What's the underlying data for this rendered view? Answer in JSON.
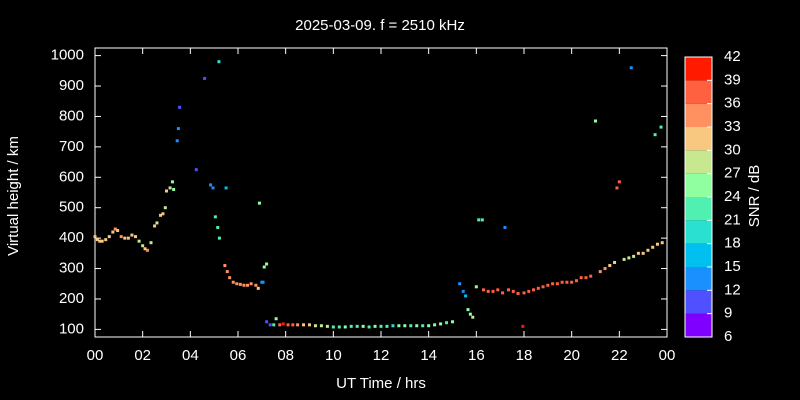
{
  "chart_data": {
    "type": "scatter",
    "title": "2025-03-09. f = 2510 kHz",
    "xlabel": "UT Time / hrs",
    "ylabel": "Virtual height / km",
    "xlim": [
      0,
      24
    ],
    "ylim": [
      75,
      1025
    ],
    "xticks": [
      {
        "value": 0,
        "label": "00"
      },
      {
        "value": 2,
        "label": "02"
      },
      {
        "value": 4,
        "label": "04"
      },
      {
        "value": 6,
        "label": "06"
      },
      {
        "value": 8,
        "label": "08"
      },
      10,
      12,
      14,
      16,
      18,
      20,
      22,
      {
        "value": 24,
        "label": "00"
      }
    ],
    "yticks": [
      100,
      200,
      300,
      400,
      500,
      600,
      700,
      800,
      900,
      1000
    ],
    "colorbar_label": "SNR / dB",
    "clim": [
      6,
      42
    ],
    "cticks": [
      6,
      9,
      12,
      15,
      18,
      21,
      24,
      27,
      30,
      33,
      36,
      39,
      42
    ],
    "colors": [
      "#8000ff",
      "#5050ff",
      "#1a90ff",
      "#00c0f0",
      "#2ae0d0",
      "#50f0b0",
      "#90ffa0",
      "#c8e890",
      "#f8c880",
      "#ff9060",
      "#ff6040",
      "#ff1a00"
    ],
    "x": [
      0.0,
      0.1,
      0.2,
      0.3,
      0.45,
      0.6,
      0.75,
      0.85,
      0.95,
      1.1,
      1.25,
      1.4,
      1.55,
      1.7,
      1.85,
      2.0,
      2.1,
      2.2,
      2.35,
      2.5,
      2.6,
      2.75,
      2.85,
      2.95,
      3.0,
      3.15,
      3.25,
      3.3,
      3.45,
      3.5,
      3.55,
      4.25,
      4.6,
      5.2,
      4.85,
      4.95,
      5.05,
      5.15,
      5.22,
      5.5,
      5.45,
      5.55,
      5.65,
      5.8,
      5.95,
      6.1,
      6.25,
      6.4,
      6.55,
      6.75,
      6.85,
      6.9,
      7.0,
      7.05,
      7.1,
      7.2,
      7.2,
      7.35,
      7.5,
      7.6,
      7.75,
      7.9,
      8.1,
      8.3,
      8.5,
      8.75,
      9.0,
      9.25,
      9.5,
      9.75,
      10.0,
      10.25,
      10.5,
      10.75,
      11.0,
      11.25,
      11.5,
      11.75,
      12.0,
      12.25,
      12.5,
      12.75,
      13.0,
      13.25,
      13.5,
      13.75,
      14.0,
      14.25,
      14.5,
      14.75,
      15.0,
      15.3,
      15.45,
      15.55,
      15.65,
      15.75,
      15.85,
      16.0,
      16.1,
      16.25,
      16.3,
      16.5,
      16.7,
      16.9,
      17.1,
      17.2,
      17.35,
      17.55,
      17.75,
      17.95,
      18.0,
      18.2,
      18.4,
      18.6,
      18.8,
      19.0,
      19.2,
      19.4,
      19.6,
      19.8,
      20.0,
      20.2,
      20.4,
      20.6,
      20.8,
      21.0,
      21.2,
      21.4,
      21.6,
      21.8,
      21.9,
      22.0,
      22.2,
      22.4,
      22.5,
      22.6,
      22.8,
      23.0,
      23.2,
      23.4,
      23.5,
      23.6,
      23.75,
      23.8
    ],
    "values": [
      405,
      395,
      390,
      390,
      395,
      405,
      420,
      430,
      425,
      405,
      400,
      400,
      410,
      405,
      390,
      375,
      365,
      360,
      385,
      440,
      450,
      475,
      480,
      500,
      555,
      565,
      585,
      560,
      720,
      760,
      830,
      625,
      925,
      980,
      575,
      565,
      470,
      435,
      400,
      565,
      310,
      290,
      270,
      255,
      250,
      248,
      245,
      245,
      250,
      245,
      235,
      515,
      255,
      255,
      305,
      315,
      125,
      115,
      115,
      135,
      115,
      118,
      115,
      115,
      115,
      115,
      115,
      112,
      112,
      110,
      108,
      108,
      108,
      110,
      110,
      110,
      108,
      110,
      110,
      110,
      112,
      112,
      112,
      112,
      112,
      112,
      112,
      115,
      118,
      122,
      125,
      250,
      225,
      210,
      165,
      150,
      140,
      240,
      460,
      460,
      230,
      225,
      225,
      230,
      220,
      435,
      230,
      225,
      218,
      110,
      220,
      225,
      230,
      235,
      240,
      245,
      250,
      250,
      255,
      255,
      255,
      260,
      270,
      270,
      275,
      785,
      290,
      300,
      310,
      320,
      565,
      585,
      330,
      335,
      960,
      340,
      350,
      350,
      360,
      370,
      740,
      380,
      765,
      385
    ],
    "snr": [
      30,
      30,
      30,
      30,
      30,
      30,
      30,
      33,
      30,
      33,
      30,
      30,
      30,
      30,
      27,
      27,
      30,
      33,
      27,
      30,
      27,
      30,
      30,
      27,
      30,
      27,
      24,
      24,
      12,
      12,
      10,
      10,
      10,
      18,
      14,
      14,
      22,
      22,
      22,
      16,
      35,
      35,
      35,
      35,
      35,
      35,
      35,
      35,
      35,
      35,
      30,
      24,
      12,
      12,
      24,
      24,
      10,
      10,
      22,
      24,
      36,
      40,
      38,
      38,
      35,
      32,
      30,
      27,
      27,
      27,
      22,
      22,
      24,
      22,
      22,
      24,
      22,
      24,
      22,
      22,
      18,
      24,
      24,
      22,
      24,
      22,
      24,
      24,
      24,
      22,
      24,
      12,
      14,
      16,
      24,
      24,
      27,
      24,
      22,
      22,
      38,
      38,
      36,
      38,
      38,
      14,
      38,
      38,
      38,
      40,
      38,
      38,
      38,
      38,
      38,
      38,
      38,
      36,
      36,
      36,
      36,
      36,
      36,
      36,
      36,
      24,
      33,
      33,
      30,
      27,
      38,
      38,
      27,
      27,
      12,
      27,
      30,
      30,
      30,
      30,
      22,
      30,
      22,
      30
    ]
  }
}
